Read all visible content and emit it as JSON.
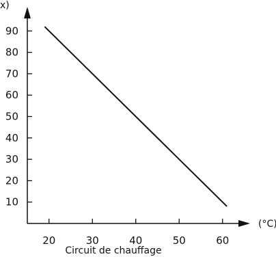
{
  "chart_data": {
    "type": "line",
    "ylabel": "x)",
    "xlabel": "Circuit de chauffage",
    "x_unit": "(°C)",
    "xlim": [
      15,
      65
    ],
    "ylim": [
      0,
      100
    ],
    "x_ticks": [
      20,
      30,
      40,
      50,
      60
    ],
    "y_ticks": [
      10,
      20,
      30,
      40,
      50,
      60,
      70,
      80,
      90
    ],
    "grid": false,
    "series": [
      {
        "x": [
          19,
          61
        ],
        "y": [
          92,
          8
        ]
      }
    ],
    "colors": {
      "line": "#111111",
      "axis": "#111111"
    }
  }
}
